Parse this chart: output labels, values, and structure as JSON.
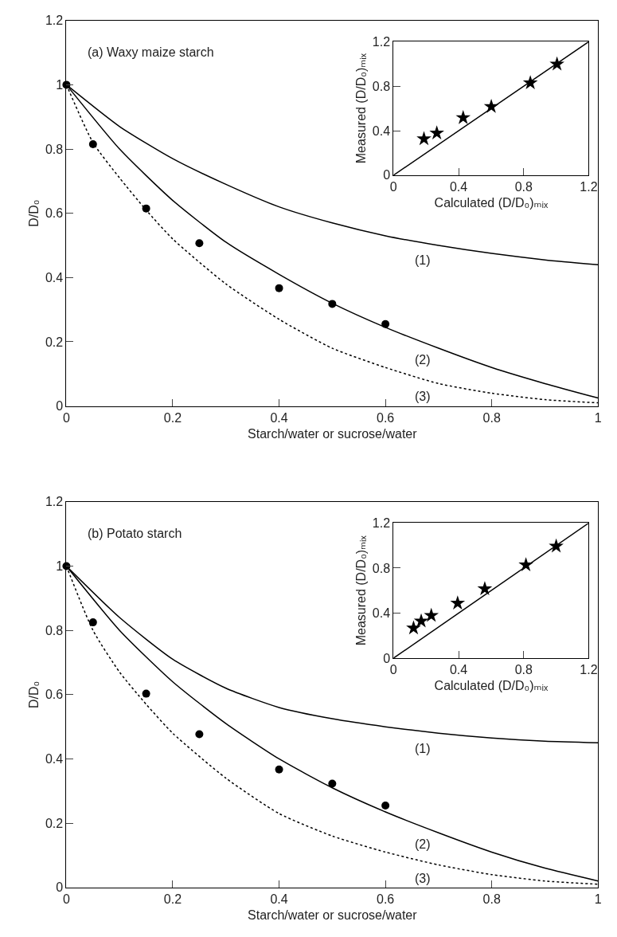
{
  "chart_data": [
    {
      "type": "line",
      "title": "(a) Waxy maize starch",
      "xlabel": "Starch/water or sucrose/water",
      "ylabel": "D/D₀",
      "xlim": [
        0,
        1
      ],
      "ylim": [
        0,
        1.2
      ],
      "xticks": [
        0,
        0.2,
        0.4,
        0.6,
        0.8,
        1
      ],
      "yticks": [
        0,
        0.2,
        0.4,
        0.6,
        0.8,
        1,
        1.2
      ],
      "series": [
        {
          "name": "(1)",
          "line_style": "solid",
          "color": "#000000",
          "x": [
            0,
            0.1,
            0.2,
            0.3,
            0.4,
            0.5,
            0.6,
            0.7,
            0.8,
            0.9,
            1.0
          ],
          "values": [
            1,
            0.87,
            0.77,
            0.69,
            0.62,
            0.57,
            0.53,
            0.5,
            0.475,
            0.455,
            0.44
          ]
        },
        {
          "name": "(2)",
          "line_style": "solid",
          "color": "#000000",
          "x": [
            0,
            0.1,
            0.2,
            0.3,
            0.4,
            0.5,
            0.6,
            0.7,
            0.8,
            0.9,
            1.0
          ],
          "values": [
            1,
            0.8,
            0.64,
            0.51,
            0.41,
            0.32,
            0.245,
            0.18,
            0.12,
            0.07,
            0.025
          ]
        },
        {
          "name": "(3)",
          "line_style": "dotted",
          "color": "#000000",
          "x": [
            0,
            0.05,
            0.1,
            0.15,
            0.2,
            0.3,
            0.4,
            0.5,
            0.6,
            0.7,
            0.8,
            0.9,
            1.0
          ],
          "values": [
            1,
            0.82,
            0.71,
            0.61,
            0.52,
            0.38,
            0.27,
            0.18,
            0.12,
            0.07,
            0.04,
            0.02,
            0.01
          ]
        },
        {
          "type": "scatter",
          "marker": "circle",
          "color": "#000000",
          "x": [
            0,
            0.05,
            0.15,
            0.25,
            0.4,
            0.5,
            0.6
          ],
          "values": [
            1,
            0.815,
            0.615,
            0.507,
            0.367,
            0.318,
            0.255
          ]
        }
      ]
    },
    {
      "type": "scatter",
      "xlabel": "Calculated (D/D₀)ₘᵢₓ",
      "ylabel": "Measured (D/D₀)ₘᵢₓ",
      "xlim": [
        0,
        1.2
      ],
      "ylim": [
        0,
        1.2
      ],
      "xticks": [
        0,
        0.4,
        0.8,
        1.2
      ],
      "yticks": [
        0,
        0.4,
        0.8,
        1.2
      ],
      "series": [
        {
          "type": "line",
          "line_style": "solid",
          "color": "#000000",
          "x": [
            0,
            1.2
          ],
          "values": [
            0,
            1.2
          ]
        },
        {
          "marker": "star",
          "color": "#000000",
          "x": [
            0.187,
            0.266,
            0.428,
            0.601,
            0.841,
            1.005
          ],
          "values": [
            0.327,
            0.379,
            0.517,
            0.617,
            0.83,
            0.998
          ]
        }
      ]
    },
    {
      "type": "line",
      "title": "(b) Potato starch",
      "xlabel": "Starch/water or sucrose/water",
      "ylabel": "D/D₀",
      "xlim": [
        0,
        1
      ],
      "ylim": [
        0,
        1.2
      ],
      "xticks": [
        0,
        0.2,
        0.4,
        0.6,
        0.8,
        1
      ],
      "yticks": [
        0,
        0.2,
        0.4,
        0.6,
        0.8,
        1,
        1.2
      ],
      "series": [
        {
          "name": "(1)",
          "line_style": "solid",
          "color": "#000000",
          "x": [
            0,
            0.1,
            0.2,
            0.3,
            0.4,
            0.5,
            0.6,
            0.7,
            0.8,
            0.9,
            1.0
          ],
          "values": [
            1,
            0.84,
            0.71,
            0.62,
            0.56,
            0.525,
            0.5,
            0.48,
            0.465,
            0.455,
            0.45
          ]
        },
        {
          "name": "(2)",
          "line_style": "solid",
          "color": "#000000",
          "x": [
            0,
            0.1,
            0.2,
            0.3,
            0.4,
            0.5,
            0.6,
            0.7,
            0.8,
            0.9,
            1.0
          ],
          "values": [
            1,
            0.8,
            0.64,
            0.51,
            0.4,
            0.31,
            0.235,
            0.17,
            0.11,
            0.06,
            0.02
          ]
        },
        {
          "name": "(3)",
          "line_style": "dotted",
          "color": "#000000",
          "x": [
            0,
            0.05,
            0.1,
            0.15,
            0.2,
            0.3,
            0.4,
            0.5,
            0.6,
            0.7,
            0.8,
            0.9,
            1.0
          ],
          "values": [
            1,
            0.8,
            0.67,
            0.57,
            0.48,
            0.34,
            0.23,
            0.16,
            0.11,
            0.07,
            0.04,
            0.02,
            0.01
          ]
        },
        {
          "type": "scatter",
          "marker": "circle",
          "color": "#000000",
          "x": [
            0,
            0.05,
            0.15,
            0.25,
            0.4,
            0.5,
            0.6
          ],
          "values": [
            1,
            0.825,
            0.603,
            0.477,
            0.367,
            0.323,
            0.255
          ]
        }
      ]
    },
    {
      "type": "scatter",
      "xlabel": "Calculated (D/D₀)ₘᵢₓ",
      "ylabel": "Measured (D/D₀)ₘᵢₓ",
      "xlim": [
        0,
        1.2
      ],
      "ylim": [
        0,
        1.2
      ],
      "xticks": [
        0,
        0.4,
        0.8,
        1.2
      ],
      "yticks": [
        0,
        0.4,
        0.8,
        1.2
      ],
      "series": [
        {
          "type": "line",
          "line_style": "solid",
          "color": "#000000",
          "x": [
            0,
            1.2
          ],
          "values": [
            0,
            1.2
          ]
        },
        {
          "marker": "star",
          "color": "#000000",
          "x": [
            0.123,
            0.17,
            0.232,
            0.394,
            0.561,
            0.814,
            1.0
          ],
          "values": [
            0.267,
            0.329,
            0.379,
            0.488,
            0.615,
            0.828,
            0.994
          ]
        }
      ]
    }
  ]
}
